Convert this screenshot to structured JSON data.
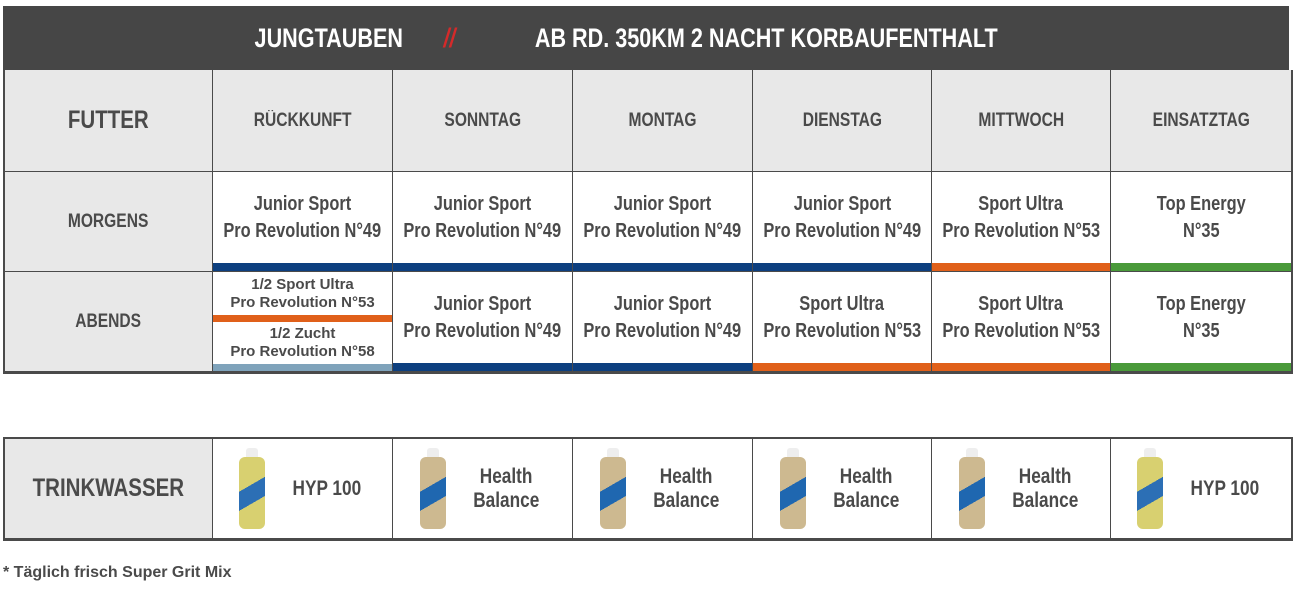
{
  "title": {
    "left": "JUNGTAUBEN",
    "separator": "//",
    "right": "AB RD. 350KM 2 NACHT KORBAUFENTHALT"
  },
  "colors": {
    "header_bg": "#464646",
    "label_bg": "#e8e8e8",
    "blue": "#0d3f7f",
    "orange": "#e0601a",
    "green": "#4a9a3a",
    "light_blue": "#7fa3bb",
    "separator": "#d42a2a"
  },
  "headers": [
    "FUTTER",
    "RÜCKKUNFT",
    "SONNTAG",
    "MONTAG",
    "DIENSTAG",
    "MITTWOCH",
    "EINSATZTAG"
  ],
  "rows": [
    {
      "label": "MORGENS",
      "cells": [
        {
          "l1": "Junior Sport",
          "l2": "Pro Revolution N°49",
          "bar": "blue"
        },
        {
          "l1": "Junior Sport",
          "l2": "Pro Revolution N°49",
          "bar": "blue"
        },
        {
          "l1": "Junior Sport",
          "l2": "Pro Revolution N°49",
          "bar": "blue"
        },
        {
          "l1": "Junior Sport",
          "l2": "Pro Revolution N°49",
          "bar": "blue"
        },
        {
          "l1": "Sport Ultra",
          "l2": "Pro Revolution N°53",
          "bar": "orange"
        },
        {
          "l1": "Top Energy",
          "l2": "N°35",
          "bar": "green"
        }
      ]
    },
    {
      "label": "ABENDS",
      "split": [
        {
          "l1": "1/2 Sport Ultra",
          "l2": "Pro Revolution N°53",
          "bar": "orange"
        },
        {
          "l1": "1/2 Zucht",
          "l2": "Pro Revolution N°58",
          "bar": "light_blue"
        }
      ],
      "cells": [
        {
          "l1": "Junior Sport",
          "l2": "Pro Revolution N°49",
          "bar": "blue"
        },
        {
          "l1": "Junior Sport",
          "l2": "Pro Revolution N°49",
          "bar": "blue"
        },
        {
          "l1": "Sport Ultra",
          "l2": "Pro Revolution N°53",
          "bar": "orange"
        },
        {
          "l1": "Sport Ultra",
          "l2": "Pro Revolution N°53",
          "bar": "orange"
        },
        {
          "l1": "Top Energy",
          "l2": "N°35",
          "bar": "green"
        }
      ]
    }
  ],
  "water": {
    "label": "TRINKWASSER",
    "items": [
      {
        "l1": "HYP 100",
        "l2": "",
        "icon": "hyp100-bottle"
      },
      {
        "l1": "Health",
        "l2": "Balance",
        "icon": "health-balance-bottle"
      },
      {
        "l1": "Health",
        "l2": "Balance",
        "icon": "health-balance-bottle"
      },
      {
        "l1": "Health",
        "l2": "Balance",
        "icon": "health-balance-bottle"
      },
      {
        "l1": "Health",
        "l2": "Balance",
        "icon": "health-balance-bottle"
      },
      {
        "l1": "HYP 100",
        "l2": "",
        "icon": "hyp100-bottle"
      }
    ]
  },
  "footnote": "*  Täglich frisch Super Grit Mix"
}
